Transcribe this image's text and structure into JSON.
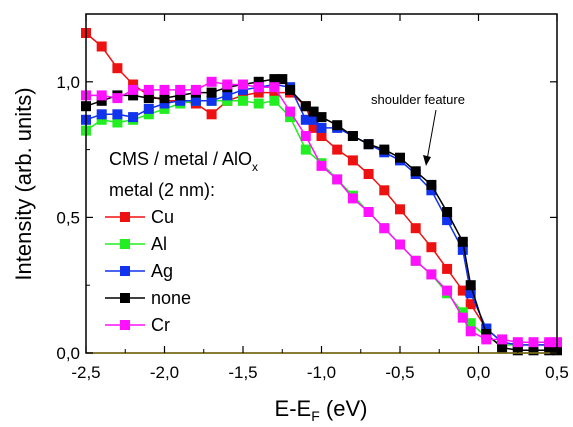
{
  "chart_data": {
    "type": "line",
    "xlabel": {
      "main": "E-E",
      "sub": "F",
      "unit": " (eV)"
    },
    "ylabel": "Intensity (arb. units)",
    "xlim": [
      -2.5,
      0.5
    ],
    "ylim": [
      0,
      1.25
    ],
    "xticks": [
      {
        "value": -2.5,
        "label": "-2,5"
      },
      {
        "value": -2.0,
        "label": "-2,0"
      },
      {
        "value": -1.5,
        "label": "-1,5"
      },
      {
        "value": -1.0,
        "label": "-1,0"
      },
      {
        "value": -0.5,
        "label": "-0,5"
      },
      {
        "value": 0.0,
        "label": "0,0"
      },
      {
        "value": 0.5,
        "label": "0,5"
      }
    ],
    "yticks": [
      {
        "value": 0.0,
        "label": "0,0"
      },
      {
        "value": 0.5,
        "label": "0,5"
      },
      {
        "value": 1.0,
        "label": "1,0"
      }
    ],
    "legend": {
      "title": {
        "main": "CMS / metal / AlO",
        "sub": "x"
      },
      "subtitle": "metal (2 nm):",
      "placement": "left"
    },
    "annotation": {
      "text": "shoulder feature",
      "target_x": -0.34,
      "target_y": 0.67
    },
    "series": [
      {
        "name": "Cu",
        "color": "#ee1111",
        "x": [
          -2.5,
          -2.4,
          -2.3,
          -2.2,
          -2.1,
          -2.0,
          -1.9,
          -1.8,
          -1.7,
          -1.6,
          -1.5,
          -1.4,
          -1.3,
          -1.2,
          -1.1,
          -1.05,
          -1.0,
          -0.9,
          -0.8,
          -0.7,
          -0.6,
          -0.5,
          -0.4,
          -0.3,
          -0.2,
          -0.1,
          -0.05,
          0.05,
          0.15,
          0.25,
          0.35,
          0.45,
          0.5
        ],
        "y": [
          1.18,
          1.13,
          1.05,
          0.99,
          0.95,
          0.93,
          0.93,
          0.92,
          0.88,
          0.93,
          0.95,
          0.96,
          0.96,
          0.96,
          0.91,
          0.83,
          0.8,
          0.75,
          0.71,
          0.66,
          0.6,
          0.53,
          0.46,
          0.39,
          0.31,
          0.23,
          0.18,
          0.09,
          0.04,
          0.03,
          0.03,
          0.03,
          0.03
        ]
      },
      {
        "name": "Al",
        "color": "#22ee22",
        "x": [
          -2.5,
          -2.4,
          -2.3,
          -2.2,
          -2.1,
          -2.0,
          -1.9,
          -1.8,
          -1.7,
          -1.6,
          -1.5,
          -1.4,
          -1.3,
          -1.2,
          -1.1,
          -1.0,
          -0.9,
          -0.8,
          -0.7,
          -0.6,
          -0.5,
          -0.4,
          -0.3,
          -0.2,
          -0.1,
          -0.05,
          0.05,
          0.15,
          0.25,
          0.35,
          0.45,
          0.5
        ],
        "y": [
          0.82,
          0.86,
          0.85,
          0.86,
          0.88,
          0.9,
          0.92,
          0.93,
          0.93,
          0.93,
          0.93,
          0.92,
          0.93,
          0.87,
          0.75,
          0.7,
          0.64,
          0.58,
          0.52,
          0.46,
          0.4,
          0.34,
          0.29,
          0.22,
          0.15,
          0.11,
          0.06,
          0.03,
          0.03,
          0.03,
          0.03,
          0.03
        ]
      },
      {
        "name": "Ag",
        "color": "#1133ee",
        "x": [
          -2.5,
          -2.4,
          -2.3,
          -2.2,
          -2.1,
          -2.0,
          -1.9,
          -1.8,
          -1.7,
          -1.6,
          -1.5,
          -1.4,
          -1.3,
          -1.2,
          -1.1,
          -1.05,
          -1.0,
          -0.9,
          -0.8,
          -0.7,
          -0.6,
          -0.5,
          -0.4,
          -0.3,
          -0.2,
          -0.1,
          -0.05,
          0.05,
          0.15,
          0.25,
          0.35,
          0.45,
          0.5
        ],
        "y": [
          0.86,
          0.88,
          0.88,
          0.87,
          0.9,
          0.92,
          0.93,
          0.93,
          0.93,
          0.95,
          0.97,
          0.98,
          0.99,
          0.98,
          0.86,
          0.86,
          0.83,
          0.83,
          0.8,
          0.77,
          0.74,
          0.71,
          0.66,
          0.6,
          0.49,
          0.38,
          0.22,
          0.09,
          0.04,
          0.03,
          0.03,
          0.03,
          0.03
        ]
      },
      {
        "name": "none",
        "color": "#000000",
        "x": [
          -2.5,
          -2.4,
          -2.3,
          -2.2,
          -2.1,
          -2.0,
          -1.9,
          -1.8,
          -1.7,
          -1.6,
          -1.5,
          -1.4,
          -1.3,
          -1.25,
          -1.2,
          -1.1,
          -1.05,
          -1.0,
          -0.9,
          -0.8,
          -0.7,
          -0.6,
          -0.5,
          -0.4,
          -0.3,
          -0.2,
          -0.1,
          -0.05,
          0.05,
          0.15,
          0.25,
          0.35,
          0.45,
          0.5
        ],
        "y": [
          0.91,
          0.93,
          0.95,
          0.95,
          0.94,
          0.94,
          0.95,
          0.96,
          0.96,
          0.98,
          0.99,
          1.0,
          1.01,
          1.01,
          0.97,
          0.91,
          0.89,
          0.87,
          0.84,
          0.8,
          0.77,
          0.75,
          0.72,
          0.67,
          0.62,
          0.52,
          0.41,
          0.25,
          0.07,
          0.02,
          0.01,
          0.01,
          0.01,
          0.01
        ]
      },
      {
        "name": "Cr",
        "color": "#ff11ff",
        "x": [
          -2.5,
          -2.4,
          -2.3,
          -2.2,
          -2.1,
          -2.0,
          -1.9,
          -1.8,
          -1.7,
          -1.6,
          -1.5,
          -1.4,
          -1.3,
          -1.2,
          -1.1,
          -1.0,
          -0.9,
          -0.8,
          -0.7,
          -0.6,
          -0.5,
          -0.4,
          -0.3,
          -0.2,
          -0.1,
          -0.05,
          0.05,
          0.15,
          0.25,
          0.35,
          0.45,
          0.5
        ],
        "y": [
          0.95,
          0.95,
          0.94,
          0.97,
          0.97,
          0.97,
          0.97,
          0.97,
          1.0,
          0.99,
          0.99,
          0.98,
          0.98,
          0.89,
          0.8,
          0.69,
          0.64,
          0.57,
          0.52,
          0.46,
          0.4,
          0.34,
          0.29,
          0.23,
          0.13,
          0.08,
          0.05,
          0.05,
          0.04,
          0.04,
          0.04,
          0.04
        ]
      }
    ]
  }
}
